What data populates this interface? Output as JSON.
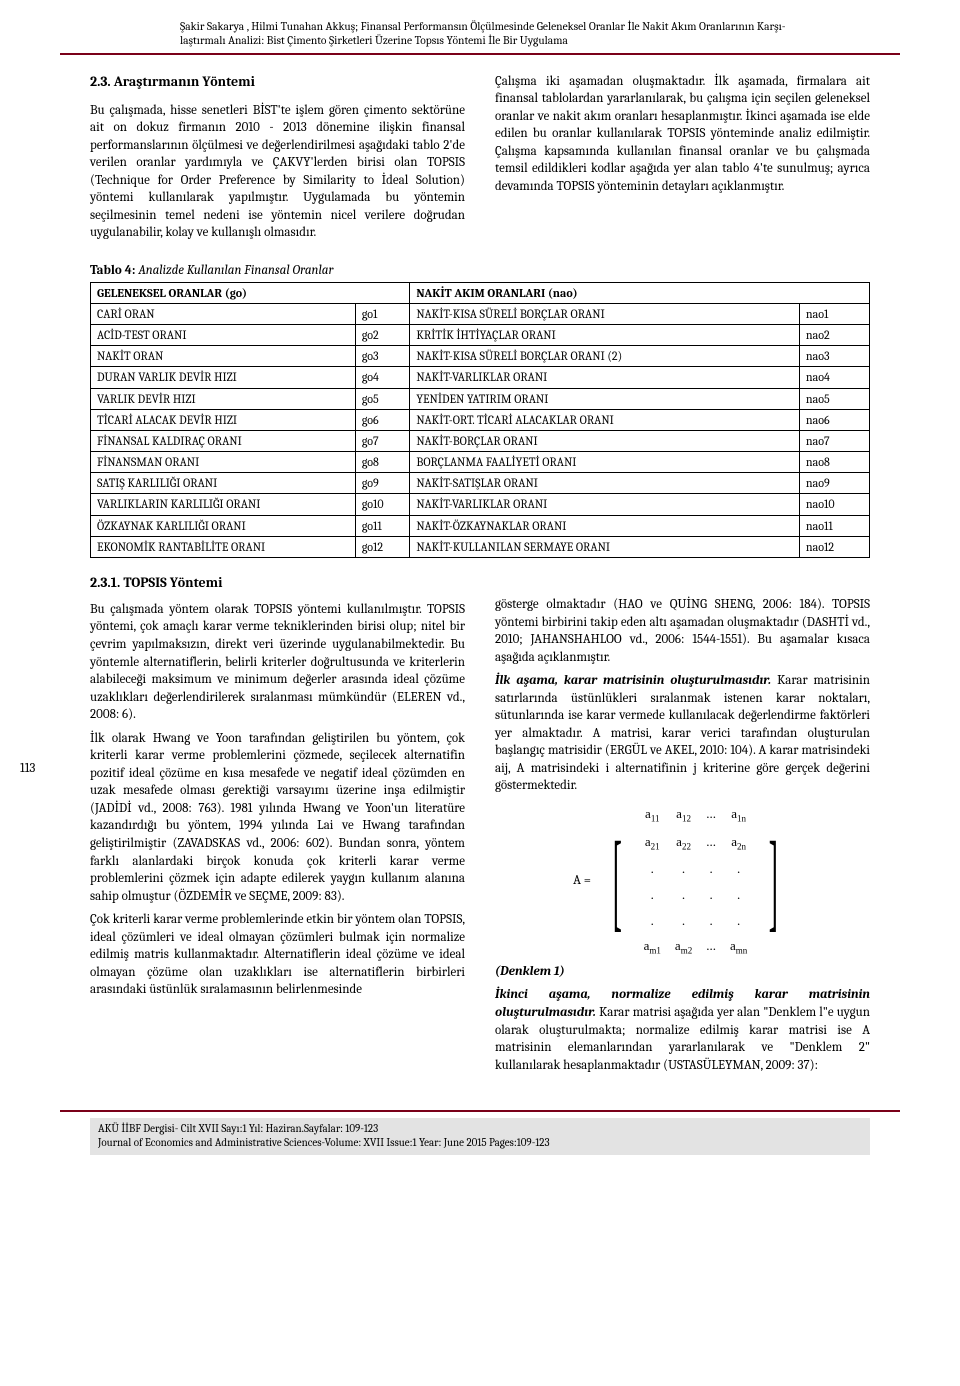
{
  "header": {
    "line1": "Şakir Sakarya , Hilmi Tunahan Akkuş; Finansal Performansın Ölçülmesinde Geleneksel Oranlar İle Nakit Akım Oranlarının Karşı-",
    "line2": "laştırmalı Analizi: Bist Çimento Şirketleri Üzerine Topsıs Yöntemi İle Bir Uygulama"
  },
  "section_2_3": {
    "title": "2.3. Araştırmanın Yöntemi",
    "left_para": "Bu çalışmada, hisse senetleri BİST'te işlem gören çimento sektörüne ait on dokuz firmanın 2010 - 2013 dönemine ilişkin finansal performanslarının ölçülmesi ve değerlendirilmesi aşağıdaki tablo 2'de verilen oranlar yardımıyla ve ÇAKVY'lerden birisi olan TOPSIS (Technique for Order Preference by Similarity to İdeal Solution) yöntemi kullanılarak yapılmıştır. Uygulamada bu yöntemin seçilmesinin temel nedeni ise yöntemin nicel verilere doğrudan uygulanabilir, kolay ve kullanışlı olmasıdır.",
    "right_para": "Çalışma iki aşamadan oluşmaktadır. İlk aşamada, firmalara ait finansal tablolardan yararlanılarak, bu çalışma için seçilen geleneksel oranlar ve nakit akım oranları hesaplanmıştır. İkinci aşamada ise elde edilen bu oranlar kullanılarak TOPSIS yönteminde analiz edilmiştir. Çalışma kapsamında kullanılan finansal oranlar ve bu çalışmada temsil edildikleri kodlar aşağıda yer alan tablo 4'te sunulmuş; ayrıca devamında TOPSIS yönteminin detayları açıklanmıştır."
  },
  "table4": {
    "caption_bold": "Tablo 4:",
    "caption_italic": " Analizde Kullanılan Finansal Oranlar",
    "header_left": "GELENEKSEL ORANLAR (go)",
    "header_right": "NAKİT AKIM ORANLARI (nao)",
    "rows": [
      {
        "l": "CARİ ORAN",
        "lc": "go1",
        "r": "NAKİT-KISA SÜRELİ BORÇLAR ORANI",
        "rc": "nao1"
      },
      {
        "l": "ACİD-TEST ORANI",
        "lc": "go2",
        "r": "KRİTİK İHTİYAÇLAR ORANI",
        "rc": "nao2"
      },
      {
        "l": "NAKİT ORAN",
        "lc": "go3",
        "r": "NAKİT-KISA SÜRELİ BORÇLAR ORANI (2)",
        "rc": "nao3"
      },
      {
        "l": "DURAN VARLIK DEVİR HIZI",
        "lc": "go4",
        "r": "NAKİT-VARLIKLAR ORANI",
        "rc": "nao4"
      },
      {
        "l": "VARLIK DEVİR HIZI",
        "lc": "go5",
        "r": "YENİDEN YATIRIM ORANI",
        "rc": "nao5"
      },
      {
        "l": "TİCARİ ALACAK DEVİR HIZI",
        "lc": "go6",
        "r": "NAKİT-ORT. TİCARİ ALACAKLAR ORANI",
        "rc": "nao6"
      },
      {
        "l": "FİNANSAL KALDIRAÇ ORANI",
        "lc": "go7",
        "r": "NAKİT-BORÇLAR ORANI",
        "rc": "nao7"
      },
      {
        "l": "FİNANSMAN ORANI",
        "lc": "go8",
        "r": "BORÇLANMA FAALİYETİ ORANI",
        "rc": "nao8"
      },
      {
        "l": "SATIŞ KARLILIĞI ORANI",
        "lc": "go9",
        "r": "NAKİT-SATIŞLAR ORANI",
        "rc": "nao9"
      },
      {
        "l": "VARLIKLARIN KARLILIĞI ORANI",
        "lc": "go10",
        "r": "NAKİT-VARLIKLAR ORANI",
        "rc": "nao10"
      },
      {
        "l": "ÖZKAYNAK KARLILIĞI ORANI",
        "lc": "go11",
        "r": "NAKİT-ÖZKAYNAKLAR ORANI",
        "rc": "nao11"
      },
      {
        "l": "EKONOMİK RANTABİLİTE ORANI",
        "lc": "go12",
        "r": "NAKİT-KULLANILAN SERMAYE ORANI",
        "rc": "nao12"
      }
    ]
  },
  "section_2_3_1": {
    "title": "2.3.1. TOPSIS Yöntemi",
    "left": {
      "p1": "Bu çalışmada yöntem olarak TOPSIS yöntemi kullanılmıştır. TOPSIS yöntemi, çok amaçlı karar verme tekniklerinden birisi olup; nitel bir çevrim yapılmaksızın, direkt veri üzerinde uygulanabilmektedir. Bu yöntemle alternatiflerin, belirli kriterler doğrultusunda ve kriterlerin alabileceği maksimum ve minimum değerler arasında ideal çözüme uzaklıkları değerlendirilerek sıralanması mümkündür (ELEREN vd., 2008: 6).",
      "p2": "İlk olarak Hwang ve Yoon tarafından geliştirilen bu yöntem, çok kriterli karar verme problemlerini çözmede, seçilecek alternatifin pozitif ideal çözüme en kısa mesafede ve negatif ideal çözümden en uzak mesafede olması gerektiği varsayımı üzerine inşa edilmiştir (JADİDİ vd., 2008: 763). 1981 yılında Hwang ve Yoon'un literatüre kazandırdığı bu yöntem, 1994 yılında Lai ve Hwang tarafından geliştirilmiştir (ZAVADSKAS vd., 2006: 602). Bundan sonra, yöntem farklı alanlardaki birçok konuda çok kriterli karar verme problemlerini çözmek için adapte edilerek yaygın kullanım alanına sahip olmuştur (ÖZDEMİR ve SEÇME, 2009: 83).",
      "p3": "Çok kriterli karar verme problemlerinde etkin bir yöntem olan TOPSIS, ideal çözümleri ve ideal olmayan çözümleri bulmak için normalize edilmiş matris kullanmaktadır. Alternatiflerin ideal çözüme ve ideal olmayan çözüme olan uzaklıkları ise alternatiflerin birbirleri arasındaki üstünlük sıralamasının belirlenmesinde"
    },
    "right": {
      "p1": "gösterge olmaktadır (HAO ve QUİNG SHENG, 2006: 184). TOPSIS yöntemi birbirini takip eden altı aşamadan oluşmaktadır (DASHTİ vd., 2010; JAHANSHAHLOO vd., 2006: 1544-1551). Bu aşamalar kısaca aşağıda açıklanmıştır.",
      "p2_lead": "İlk aşama, karar matrisinin oluşturulmasıdır.",
      "p2": " Karar matrisinin satırlarında üstünlükleri sıralanmak istenen karar noktaları, sütunlarında ise karar vermede kullanılacak değerlendirme faktörleri yer almaktadır. A matrisi, karar verici tarafından oluşturulan başlangıç matrisidir (ERGÜL ve AKEL, 2010: 104). A karar matrisindeki aij, A matrisindeki i alternatifinin j kriterine göre gerçek değerini göstermektedir.",
      "denklem1": "(Denklem 1)",
      "p3_lead": "İkinci aşama, normalize edilmiş karar matrisinin oluşturulmasıdır.",
      "p3": " Karar matrisi aşağıda yer alan \"Denklem l\"e uygun olarak oluşturulmakta; normalize edilmiş karar matrisi ise A matrisinin elemanlarından yararlanılarak ve \"Denklem 2\" kullanılarak hesaplanmaktadır (USTASÜLEYMAN, 2009: 37):"
    }
  },
  "matrix": {
    "label": "A =",
    "cells": [
      [
        "a",
        "11",
        "a",
        "12",
        "...",
        "a",
        "1n"
      ],
      [
        "a",
        "21",
        "a",
        "22",
        "...",
        "a",
        "2n"
      ],
      [
        ".",
        "",
        ".",
        "",
        ".",
        ".",
        ""
      ],
      [
        ".",
        "",
        ".",
        "",
        ".",
        ".",
        ""
      ],
      [
        ".",
        "",
        ".",
        "",
        ".",
        ".",
        ""
      ],
      [
        "a",
        "m1",
        "a",
        "m2",
        "...",
        "a",
        "mn"
      ]
    ]
  },
  "page_number": "113",
  "footer": {
    "line1": "AKÜ İİBF Dergisi- Cilt XVII  Sayı:1 Yıl: Haziran.Sayfalar: 109-123",
    "line2": "Journal of Economics and Administrative Sciences-Volume: XVII Issue:1 Year: June 2015 Pages:109-123"
  }
}
